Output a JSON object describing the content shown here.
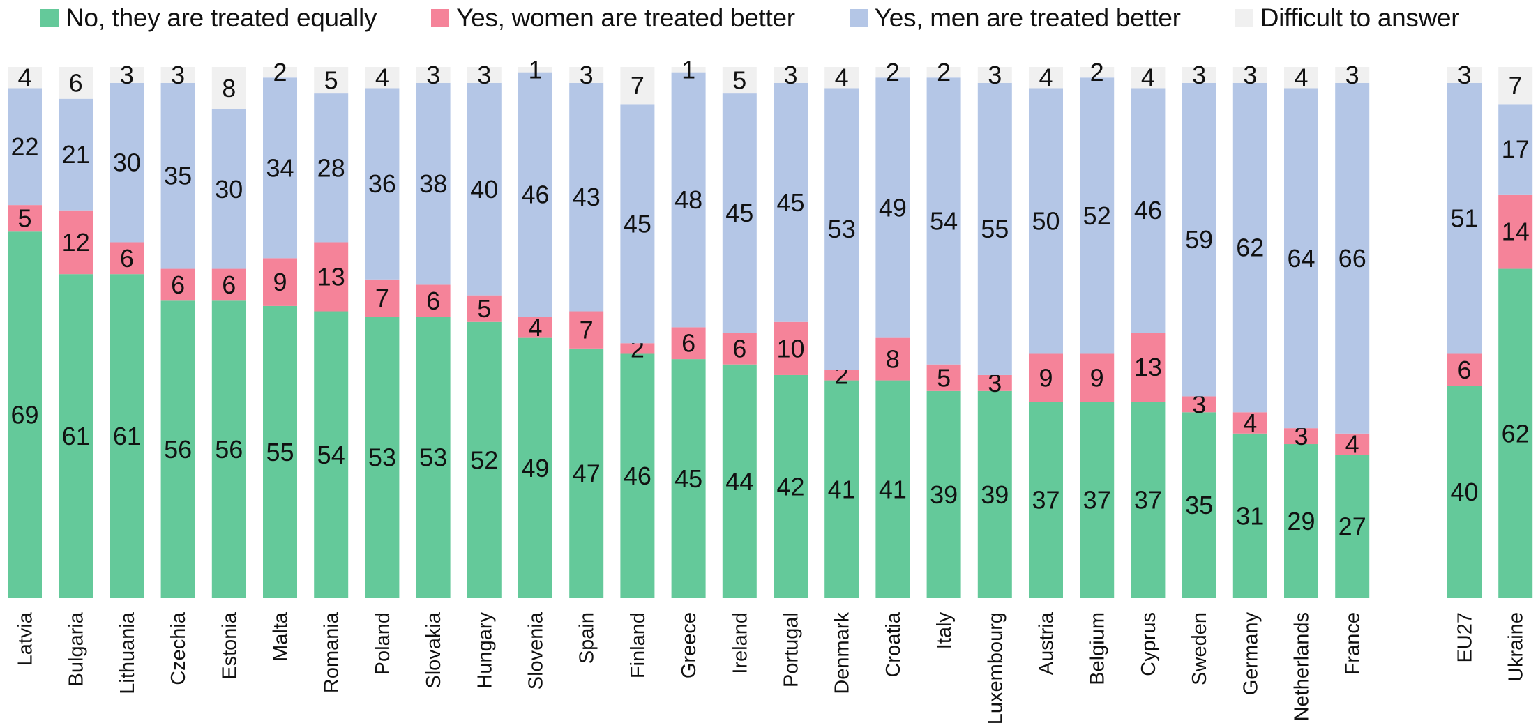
{
  "chart_data": {
    "type": "bar",
    "stacked": true,
    "orientation": "vertical",
    "ylim": [
      0,
      100
    ],
    "grid": false,
    "legend_position": "top",
    "data_labels": true,
    "categories": [
      "Latvia",
      "Bulgaria",
      "Lithuania",
      "Czechia",
      "Estonia",
      "Malta",
      "Romania",
      "Poland",
      "Slovakia",
      "Hungary",
      "Slovenia",
      "Spain",
      "Finland",
      "Greece",
      "Ireland",
      "Portugal",
      "Denmark",
      "Croatia",
      "Italy",
      "Luxembourg",
      "Austria",
      "Belgium",
      "Cyprus",
      "Sweden",
      "Germany",
      "Netherlands",
      "France",
      "EU27",
      "Ukraine"
    ],
    "series": [
      {
        "name": "No, they are treated equally",
        "color": "#64c99a",
        "values": [
          69,
          61,
          61,
          56,
          56,
          55,
          54,
          53,
          53,
          52,
          49,
          47,
          46,
          45,
          44,
          42,
          41,
          41,
          39,
          39,
          37,
          37,
          37,
          35,
          31,
          29,
          27,
          40,
          62
        ]
      },
      {
        "name": "Yes, women are treated better",
        "color": "#f58399",
        "values": [
          5,
          12,
          6,
          6,
          6,
          9,
          13,
          7,
          6,
          5,
          4,
          7,
          2,
          6,
          6,
          10,
          2,
          8,
          5,
          3,
          9,
          9,
          13,
          3,
          4,
          3,
          4,
          6,
          14
        ]
      },
      {
        "name": "Yes, men are treated better",
        "color": "#b4c6e6",
        "values": [
          22,
          21,
          30,
          35,
          30,
          34,
          28,
          36,
          38,
          40,
          46,
          43,
          45,
          48,
          45,
          45,
          53,
          49,
          54,
          55,
          50,
          52,
          46,
          59,
          62,
          64,
          66,
          51,
          17
        ]
      },
      {
        "name": "Difficult to answer",
        "color": "#f0f0f0",
        "values": [
          4,
          6,
          3,
          3,
          8,
          2,
          5,
          4,
          3,
          3,
          1,
          3,
          7,
          1,
          5,
          3,
          4,
          2,
          2,
          3,
          4,
          2,
          4,
          3,
          3,
          4,
          3,
          3,
          7
        ]
      }
    ]
  }
}
